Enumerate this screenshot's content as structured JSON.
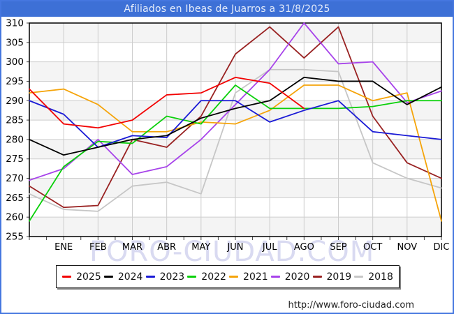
{
  "title_bar": {
    "text": "Afiliados en Ibeas de Juarros a 31/8/2025",
    "bg_color": "#3d70d6"
  },
  "watermark": "FORO-CIUDAD.COM",
  "footer": {
    "url": "http://www.foro-ciudad.com"
  },
  "chart_data": {
    "type": "line",
    "title": "Afiliados en Ibeas de Juarros a 31/8/2025",
    "xlabel": "",
    "ylabel": "",
    "categories": [
      "ENE",
      "FEB",
      "MAR",
      "ABR",
      "MAY",
      "JUN",
      "JUL",
      "AGO",
      "SEP",
      "OCT",
      "NOV",
      "DIC"
    ],
    "ylim": [
      255,
      310
    ],
    "y_ticks": [
      310,
      305,
      300,
      295,
      290,
      285,
      280,
      275,
      270,
      265,
      260,
      255
    ],
    "grid": true,
    "legend_position": "bottom",
    "note": "first value of each series is the starting point plotted on the left axis before ENE; 2025 ends at AGO",
    "series": [
      {
        "name": "2025",
        "color": "#f20202",
        "values": [
          293,
          284,
          283,
          285,
          291.5,
          292,
          296,
          294.5,
          288
        ]
      },
      {
        "name": "2024",
        "color": "#000000",
        "values": [
          280,
          276,
          278,
          280,
          281,
          285.5,
          288,
          290,
          296,
          295,
          295,
          289,
          293.5
        ]
      },
      {
        "name": "2023",
        "color": "#1a1ad6",
        "values": [
          290,
          286.5,
          278,
          281,
          280.5,
          290,
          290,
          284.5,
          287.5,
          290,
          282,
          281,
          280
        ]
      },
      {
        "name": "2022",
        "color": "#0ad00a",
        "values": [
          259,
          273,
          279.5,
          279,
          286,
          284,
          294,
          288,
          288,
          288,
          288.5,
          290,
          290
        ]
      },
      {
        "name": "2021",
        "color": "#f5a40a",
        "values": [
          292,
          293,
          289,
          282,
          282,
          284.5,
          284,
          287.5,
          294,
          294,
          290,
          292,
          259
        ]
      },
      {
        "name": "2020",
        "color": "#a743ea",
        "values": [
          269.5,
          272.5,
          280,
          271,
          273,
          280,
          289,
          298,
          310,
          299.5,
          300,
          289.5,
          292.5
        ]
      },
      {
        "name": "2019",
        "color": "#992222",
        "values": [
          268,
          262.5,
          263,
          280,
          278,
          286,
          302,
          309,
          301,
          309,
          286,
          274,
          270
        ]
      },
      {
        "name": "2018",
        "color": "#c6c6c6",
        "values": [
          266,
          262,
          261.5,
          268,
          269,
          266,
          292,
          298,
          298,
          297.5,
          274,
          270,
          267.5
        ]
      }
    ]
  }
}
